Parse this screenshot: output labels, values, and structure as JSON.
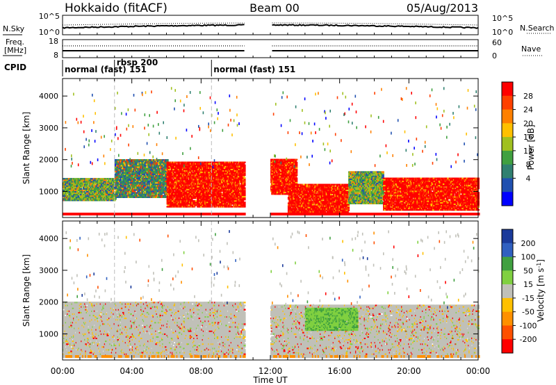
{
  "header": {
    "station": "Hokkaido (fitACF)",
    "beam": "Beam 00",
    "date": "05/Aug/2013"
  },
  "noise_panel": {
    "left_label": "N.Sky",
    "left_tick_top": "10^5",
    "left_tick_bottom": "10^0",
    "right_label": "N.Search",
    "right_tick_top": "10^5",
    "right_tick_bottom": "10^0"
  },
  "freq_panel": {
    "left_label_line1": "Freq.",
    "left_label_line2": "[MHz]",
    "left_tick_top": "18",
    "left_tick_bottom": "8",
    "right_label": "Nave",
    "right_tick_top": "60",
    "right_tick_bottom": "0"
  },
  "cpid": {
    "label": "CPID",
    "segments": [
      {
        "text": "normal (fast) 151",
        "start_hour": 0.0
      },
      {
        "text": "rbsp 200",
        "start_hour": 3.0
      },
      {
        "text": "normal (fast) 151",
        "start_hour": 8.6
      }
    ]
  },
  "colorbars": {
    "power": {
      "title": "Power [dB]",
      "ticks": [
        "28",
        "24",
        "20",
        "16",
        "12",
        "8",
        "4"
      ],
      "colors": [
        "#ff0000",
        "#ff4000",
        "#ff8000",
        "#ffc000",
        "#a0c020",
        "#40a040",
        "#308070",
        "#2050b0",
        "#0000ff"
      ]
    },
    "velocity": {
      "title": "Velocity [m s-1]",
      "title_main": "Velocity [m s",
      "title_sup": "-1",
      "title_end": "]",
      "ticks": [
        "200",
        "100",
        "50",
        "15",
        "-15",
        "-50",
        "-100",
        "-200"
      ],
      "colors": [
        "#1a3a9a",
        "#3060c0",
        "#40a040",
        "#80d040",
        "#c0c0b8",
        "#ffc000",
        "#ff9000",
        "#ff5000",
        "#ff0000"
      ]
    }
  },
  "chart_data": {
    "type": "heatmap",
    "x_ticks": [
      "00:00",
      "04:00",
      "08:00",
      "12:00",
      "16:00",
      "20:00",
      "00:00"
    ],
    "xlabel": "Time UT",
    "xlim_hours": [
      0,
      24
    ],
    "data_gap_hours": [
      10.5,
      12.0
    ],
    "y_ticks": [
      "1000",
      "2000",
      "3000",
      "4000"
    ],
    "ylabel": "Slant Range [km]",
    "ylim_km": [
      180,
      4550
    ],
    "panels": [
      {
        "name": "power",
        "bands": [
          {
            "start_hour": 0.0,
            "end_hour": 3.0,
            "low_km": 700,
            "high_km": 1400,
            "level": "mid"
          },
          {
            "start_hour": 3.0,
            "end_hour": 6.0,
            "low_km": 800,
            "high_km": 2000,
            "level": "mixed"
          },
          {
            "start_hour": 6.0,
            "end_hour": 10.5,
            "low_km": 500,
            "high_km": 1900,
            "level": "high"
          },
          {
            "start_hour": 12.0,
            "end_hour": 13.5,
            "low_km": 900,
            "high_km": 2000,
            "level": "high"
          },
          {
            "start_hour": 13.0,
            "end_hour": 16.5,
            "low_km": 250,
            "high_km": 1200,
            "level": "high"
          },
          {
            "start_hour": 16.5,
            "end_hour": 18.5,
            "low_km": 600,
            "high_km": 1600,
            "level": "mid"
          },
          {
            "start_hour": 18.5,
            "end_hour": 24.0,
            "low_km": 400,
            "high_km": 1400,
            "level": "high"
          }
        ]
      },
      {
        "name": "velocity",
        "bands": [
          {
            "start_hour": 0.0,
            "end_hour": 10.5,
            "low_km": 300,
            "high_km": 2000,
            "level": "near_zero"
          },
          {
            "start_hour": 12.0,
            "end_hour": 24.0,
            "low_km": 300,
            "high_km": 1900,
            "level": "near_zero"
          },
          {
            "start_hour": 14.0,
            "end_hour": 17.0,
            "low_km": 1100,
            "high_km": 1800,
            "level": "positive_50"
          }
        ]
      }
    ]
  }
}
